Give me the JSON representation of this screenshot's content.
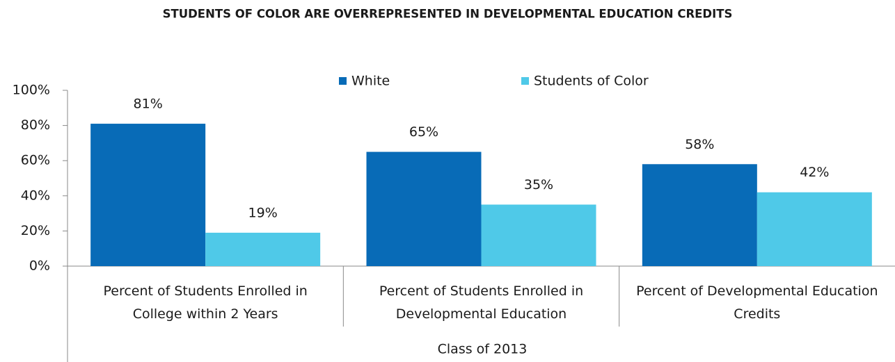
{
  "chart_data": {
    "type": "bar",
    "title": "STUDENTS OF COLOR ARE OVERREPRESENTED IN DEVELOPMENTAL EDUCATION CREDITS",
    "xlabel": "Class of 2013",
    "categories": [
      "Percent of Students Enrolled in College within 2 Years",
      "Percent of Students Enrolled in Developmental Education",
      "Percent of Developmental Education Credits"
    ],
    "series": [
      {
        "name": "White",
        "color": "#086bb7",
        "values": [
          81,
          65,
          58
        ],
        "value_labels": [
          "81%",
          "65%",
          "58%"
        ]
      },
      {
        "name": "Students of Color",
        "color": "#4fc9e8",
        "values": [
          19,
          35,
          42
        ],
        "value_labels": [
          "19%",
          "35%",
          "42%"
        ]
      }
    ],
    "ylim": [
      0,
      100
    ],
    "yticks": [
      {
        "value": 0,
        "label": "0%"
      },
      {
        "value": 20,
        "label": "20%"
      },
      {
        "value": 40,
        "label": "40%"
      },
      {
        "value": 60,
        "label": "60%"
      },
      {
        "value": 80,
        "label": "80%"
      },
      {
        "value": 100,
        "label": "100%"
      }
    ],
    "legend": "top",
    "grid": false
  }
}
